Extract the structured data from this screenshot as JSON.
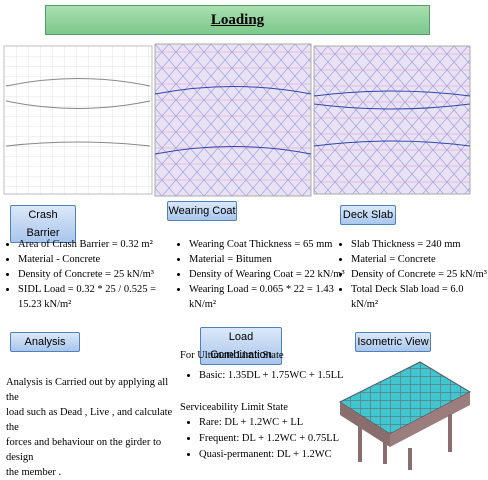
{
  "title": "Loading",
  "sections": [
    {
      "label": "Crash Barrier",
      "items": [
        "Area of Crash Barrier = 0.32 m²",
        "Material - Concrete",
        "Density of Concrete = 25 kN/m³",
        "SIDL Load = 0.32 * 25 / 0.525 = 15.23 kN/m²"
      ]
    },
    {
      "label": "Wearing Coat",
      "items": [
        "Wearing Coat Thickness = 65 mm",
        "Material = Bitumen",
        "Density of Wearing Coat = 22 kN/m³",
        "Wearing Load = 0.065 * 22 = 1.43 kN/m²"
      ]
    },
    {
      "label": "Deck Slab",
      "items": [
        "Slab Thickness = 240 mm",
        "Material = Concrete",
        "Density of Concrete = 25 kN/m³",
        "Total Deck Slab load = 6.0 kN/m²"
      ]
    }
  ],
  "analysis": {
    "label": "Analysis",
    "lines": [
      "Analysis is Carried out by applying all the",
      "load such as Dead , Live , and calculate  the",
      "forces and behaviour on the girder to design",
      "the member ."
    ]
  },
  "load_combination": {
    "label": "Load Combination",
    "uls_heading": "For Ultimate Limit State",
    "uls_items": [
      "Basic: 1.35DL + 1.75WC + 1.5LL"
    ],
    "sls_heading": "Serviceability Limit State",
    "sls_items": [
      "Rare: DL + 1.2WC + LL",
      "Frequent: DL + 1.2WC + 0.75LL",
      "Quasi-permanent: DL + 1.2WC"
    ]
  },
  "isometric": {
    "label": "Isometric View"
  }
}
